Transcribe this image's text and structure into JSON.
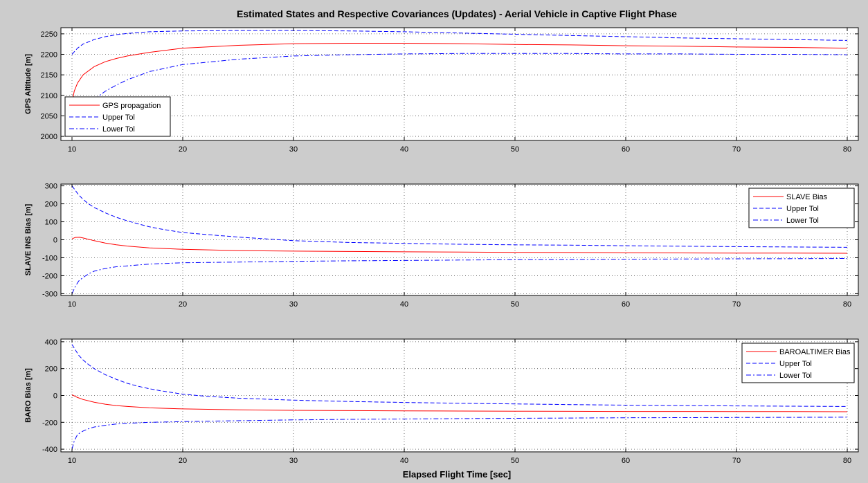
{
  "figure": {
    "title": "Estimated States and Respective Covariances (Updates) - Aerial Vehicle in Captive Flight Phase",
    "xlabel": "Elapsed Flight Time [sec]",
    "colors": {
      "estimate": "#ff0000",
      "tolerance": "#0000ff",
      "background": "#cccccc",
      "axes": "#ffffff"
    }
  },
  "chart_data": [
    {
      "type": "line",
      "ylabel": "GPS Altitude [m]",
      "xlim": [
        9,
        81
      ],
      "ylim": [
        1990,
        2265
      ],
      "xticks": [
        10,
        20,
        30,
        40,
        50,
        60,
        70,
        80
      ],
      "yticks": [
        2000,
        2050,
        2100,
        2150,
        2200,
        2250
      ],
      "grid": true,
      "legend_position": "bottom-left",
      "series": [
        {
          "name": "GPS propagation",
          "color": "#ff0000",
          "style": "solid",
          "x": [
            10,
            10.2,
            10.5,
            11,
            12,
            13,
            14,
            15,
            17,
            20,
            25,
            30,
            35,
            40,
            45,
            50,
            55,
            60,
            65,
            70,
            75,
            80
          ],
          "y": [
            2080,
            2110,
            2130,
            2150,
            2170,
            2182,
            2190,
            2196,
            2205,
            2215,
            2222,
            2226,
            2227,
            2227,
            2226,
            2224,
            2223,
            2221,
            2220,
            2218,
            2217,
            2215
          ]
        },
        {
          "name": "Upper Tol",
          "color": "#0000ff",
          "style": "dashed",
          "x": [
            10,
            10.5,
            11,
            12,
            13,
            14,
            15,
            16,
            17,
            20,
            25,
            30,
            35,
            40,
            45,
            50,
            55,
            60,
            65,
            70,
            75,
            80
          ],
          "y": [
            2200,
            2215,
            2225,
            2236,
            2243,
            2248,
            2251,
            2253,
            2255,
            2257,
            2258,
            2258,
            2257,
            2255,
            2252,
            2249,
            2246,
            2243,
            2240,
            2238,
            2236,
            2234
          ]
        },
        {
          "name": "Lower Tol",
          "color": "#0000ff",
          "style": "dashdot",
          "x": [
            12,
            13,
            14,
            15,
            17,
            20,
            25,
            30,
            35,
            40,
            45,
            50,
            55,
            60,
            65,
            70,
            75,
            80
          ],
          "y": [
            2090,
            2110,
            2125,
            2138,
            2158,
            2175,
            2188,
            2196,
            2199,
            2201,
            2202,
            2202,
            2202,
            2201,
            2201,
            2200,
            2200,
            2199
          ]
        }
      ]
    },
    {
      "type": "line",
      "ylabel": "SLAVE INS Bias [m]",
      "xlim": [
        9,
        81
      ],
      "ylim": [
        -310,
        310
      ],
      "xticks": [
        10,
        20,
        30,
        40,
        50,
        60,
        70,
        80
      ],
      "yticks": [
        -300,
        -200,
        -100,
        0,
        100,
        200,
        300
      ],
      "grid": true,
      "legend_position": "top-right",
      "series": [
        {
          "name": "SLAVE Bias",
          "color": "#ff0000",
          "style": "solid",
          "x": [
            10,
            10.3,
            10.7,
            11,
            12,
            13,
            14,
            15,
            17,
            20,
            25,
            30,
            35,
            40,
            45,
            50,
            55,
            60,
            65,
            70,
            75,
            80
          ],
          "y": [
            5,
            13,
            14,
            10,
            -5,
            -18,
            -28,
            -35,
            -45,
            -53,
            -60,
            -63,
            -65,
            -67,
            -68,
            -70,
            -71,
            -72,
            -73,
            -74,
            -74,
            -75
          ]
        },
        {
          "name": "Upper Tol",
          "color": "#0000ff",
          "style": "dashed",
          "x": [
            10,
            10.3,
            10.6,
            11,
            11.5,
            12,
            13,
            14,
            15,
            16,
            17,
            18,
            20,
            25,
            30,
            35,
            40,
            45,
            50,
            55,
            60,
            65,
            70,
            75,
            80
          ],
          "y": [
            300,
            275,
            250,
            225,
            200,
            180,
            150,
            125,
            105,
            88,
            72,
            60,
            40,
            15,
            -5,
            -15,
            -20,
            -25,
            -28,
            -30,
            -33,
            -36,
            -38,
            -40,
            -42
          ]
        },
        {
          "name": "Lower Tol",
          "color": "#0000ff",
          "style": "dashdot",
          "x": [
            10,
            10.3,
            10.6,
            11,
            11.5,
            12,
            13,
            14,
            15,
            17,
            20,
            25,
            30,
            35,
            40,
            45,
            50,
            55,
            60,
            65,
            70,
            75,
            80
          ],
          "y": [
            -300,
            -260,
            -230,
            -210,
            -190,
            -175,
            -160,
            -150,
            -145,
            -135,
            -128,
            -124,
            -120,
            -117,
            -115,
            -113,
            -111,
            -110,
            -108,
            -107,
            -106,
            -105,
            -104
          ]
        }
      ]
    },
    {
      "type": "line",
      "ylabel": "BARO Bias [m]",
      "xlim": [
        9,
        81
      ],
      "ylim": [
        -420,
        420
      ],
      "xticks": [
        10,
        20,
        30,
        40,
        50,
        60,
        70,
        80
      ],
      "yticks": [
        -400,
        -200,
        0,
        200,
        400
      ],
      "grid": true,
      "legend_position": "top-right",
      "series": [
        {
          "name": "BAROALTIMER Bias",
          "color": "#ff0000",
          "style": "solid",
          "x": [
            10,
            10.5,
            11,
            12,
            13,
            14,
            15,
            17,
            20,
            25,
            30,
            35,
            40,
            45,
            50,
            55,
            60,
            65,
            70,
            75,
            80
          ],
          "y": [
            5,
            -15,
            -30,
            -50,
            -65,
            -75,
            -82,
            -92,
            -100,
            -107,
            -111,
            -113,
            -115,
            -116,
            -117,
            -118,
            -119,
            -119,
            -120,
            -120,
            -121
          ]
        },
        {
          "name": "Upper Tol",
          "color": "#0000ff",
          "style": "dashed",
          "x": [
            10,
            10.3,
            10.6,
            11,
            11.5,
            12,
            13,
            14,
            15,
            16,
            17,
            18,
            20,
            22,
            25,
            30,
            35,
            40,
            45,
            50,
            55,
            60,
            65,
            70,
            75,
            80
          ],
          "y": [
            380,
            340,
            300,
            265,
            230,
            200,
            155,
            120,
            90,
            68,
            50,
            35,
            10,
            -5,
            -20,
            -35,
            -45,
            -52,
            -58,
            -63,
            -68,
            -72,
            -75,
            -78,
            -80,
            -82
          ]
        },
        {
          "name": "Lower Tol",
          "color": "#0000ff",
          "style": "dashdot",
          "x": [
            10,
            10.2,
            10.5,
            11,
            11.5,
            12,
            13,
            14,
            15,
            17,
            20,
            25,
            30,
            35,
            40,
            45,
            50,
            55,
            60,
            65,
            70,
            75,
            80
          ],
          "y": [
            -400,
            -340,
            -290,
            -265,
            -248,
            -235,
            -222,
            -213,
            -207,
            -200,
            -195,
            -188,
            -182,
            -178,
            -175,
            -172,
            -170,
            -168,
            -166,
            -165,
            -164,
            -163,
            -162
          ]
        }
      ]
    }
  ]
}
